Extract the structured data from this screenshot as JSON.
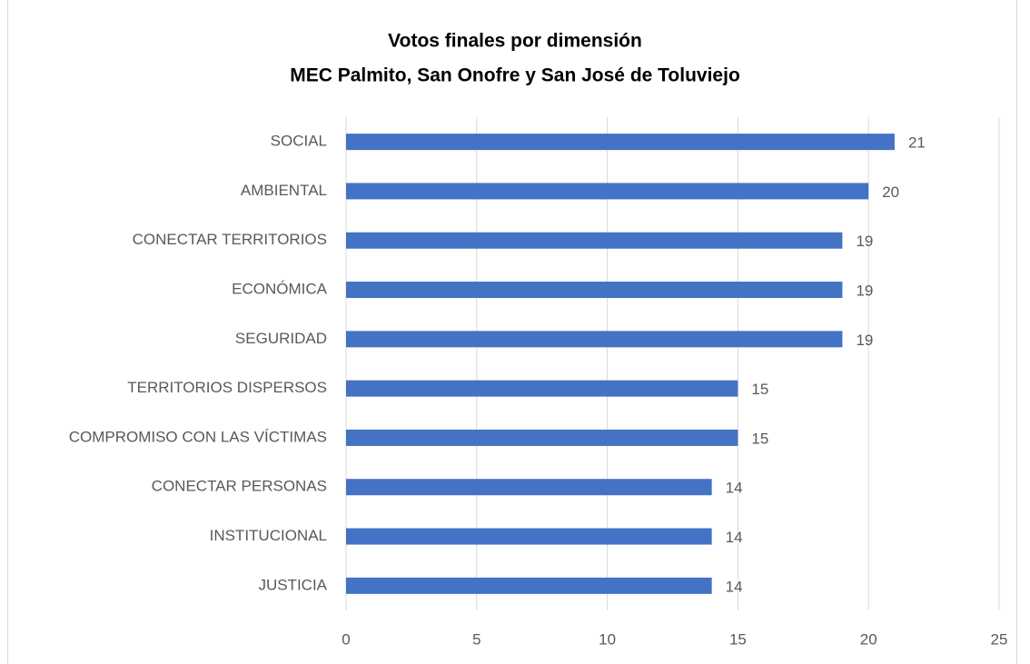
{
  "chart_data": {
    "type": "bar",
    "orientation": "horizontal",
    "title": [
      "Votos finales por dimensión",
      "MEC Palmito, San Onofre y San José de Toluviejo"
    ],
    "categories": [
      "SOCIAL",
      "AMBIENTAL",
      "CONECTAR TERRITORIOS",
      "ECONÓMICA",
      "SEGURIDAD",
      "TERRITORIOS DISPERSOS",
      "COMPROMISO CON LAS VÍCTIMAS",
      "CONECTAR PERSONAS",
      "INSTITUCIONAL",
      "JUSTICIA"
    ],
    "values": [
      21,
      20,
      19,
      19,
      19,
      15,
      15,
      14,
      14,
      14
    ],
    "color": "#4472c4",
    "xlim": [
      0,
      25
    ],
    "xticks": [
      0,
      5,
      10,
      15,
      20,
      25
    ],
    "grid": true
  }
}
